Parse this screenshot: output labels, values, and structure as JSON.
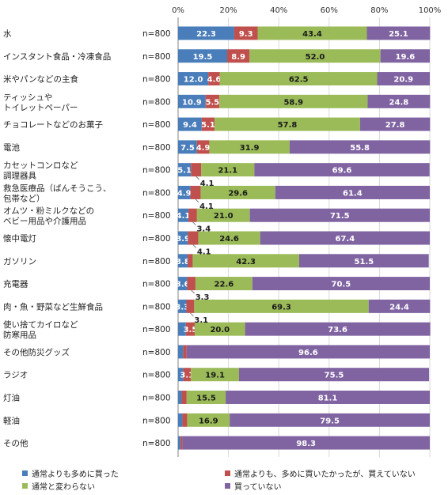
{
  "chart_data": {
    "type": "bar",
    "orientation": "horizontal",
    "stacked": true,
    "xlim": [
      0,
      100
    ],
    "x_ticks": [
      "0%",
      "20%",
      "40%",
      "60%",
      "80%",
      "100%"
    ],
    "grid": true,
    "legend_position": "bottom",
    "categories": [
      [
        "水"
      ],
      [
        "インスタント食品・冷凍食品"
      ],
      [
        "米やパンなどの主食"
      ],
      [
        "ティッシュや",
        "トイレットペーパー"
      ],
      [
        "チョコレートなどのお菓子"
      ],
      [
        "電池"
      ],
      [
        "カセットコンロなど",
        "調理器具"
      ],
      [
        "救急医療品（ばんそうこう、",
        "包帯など）"
      ],
      [
        "オムツ・粉ミルクなどの",
        "ベビー用品や介護用品"
      ],
      [
        "懐中電灯"
      ],
      [
        "ガソリン"
      ],
      [
        "充電器"
      ],
      [
        "肉・魚・野菜など生鮮食品"
      ],
      [
        "使い捨てカイロなど",
        "防寒用品"
      ],
      [
        "その他防災グッズ"
      ],
      [
        "ラジオ"
      ],
      [
        "灯油"
      ],
      [
        "軽油"
      ],
      [
        "その他"
      ]
    ],
    "n_labels": [
      "n=800",
      "n=800",
      "n=800",
      "n=800",
      "n=800",
      "n=800",
      "n=800",
      "n=800",
      "n=800",
      "n=800",
      "n=800",
      "n=800",
      "n=800",
      "n=800",
      "n=800",
      "n=800",
      "n=800",
      "n=800",
      "n=800"
    ],
    "series": [
      {
        "name": "通常よりも多めに買った",
        "color": "#4a7ebb",
        "values": [
          22.3,
          19.5,
          12.0,
          10.9,
          9.4,
          7.5,
          5.1,
          4.9,
          4.1,
          3.9,
          3.8,
          3.6,
          3.3,
          3.1,
          2.0,
          2.0,
          1.4,
          1.7,
          1.0
        ],
        "labels": [
          "22.3",
          "19.5",
          "12.0",
          "10.9",
          "9.4",
          "7.5",
          "5.1",
          "4.9",
          "4.1",
          "3.9",
          "3.8",
          "3.6",
          "3.3",
          "",
          "",
          "",
          "",
          "",
          ""
        ]
      },
      {
        "name": "通常よりも、多めに買いたかったが、買えていない",
        "color": "#c0504d",
        "values": [
          9.3,
          8.9,
          4.6,
          5.5,
          5.1,
          4.9,
          4.1,
          4.1,
          3.4,
          4.1,
          2.0,
          3.3,
          3.1,
          3.5,
          1.4,
          3.1,
          2.0,
          1.9,
          0.7
        ],
        "labels": [
          "9.3",
          "8.9",
          "4.6",
          "5.5",
          "5.1",
          "4.9",
          "",
          "",
          "",
          "",
          "",
          "",
          "",
          "3.5",
          "",
          "3.1",
          "",
          "",
          ""
        ]
      },
      {
        "name": "通常と変わらない",
        "color": "#9bbb59",
        "values": [
          43.4,
          52.0,
          62.5,
          58.9,
          57.8,
          31.9,
          21.1,
          29.6,
          21.0,
          24.6,
          42.3,
          22.6,
          69.3,
          20.0,
          0.0,
          19.1,
          15.5,
          16.9,
          0.0
        ],
        "labels": [
          "43.4",
          "52.0",
          "62.5",
          "58.9",
          "57.8",
          "31.9",
          "21.1",
          "29.6",
          "21.0",
          "24.6",
          "42.3",
          "22.6",
          "69.3",
          "20.0",
          "",
          "19.1",
          "15.5",
          "16.9",
          ""
        ]
      },
      {
        "name": "買っていない",
        "color": "#8064a2",
        "values": [
          25.1,
          19.6,
          20.9,
          24.8,
          27.8,
          55.8,
          69.6,
          61.4,
          71.5,
          67.4,
          51.5,
          70.5,
          24.4,
          73.6,
          96.6,
          75.5,
          81.1,
          79.5,
          98.3
        ],
        "labels": [
          "25.1",
          "19.6",
          "20.9",
          "24.8",
          "27.8",
          "55.8",
          "69.6",
          "61.4",
          "71.5",
          "67.4",
          "51.5",
          "70.5",
          "24.4",
          "73.6",
          "96.6",
          "75.5",
          "81.1",
          "79.5",
          "98.3"
        ]
      }
    ],
    "callouts": [
      {
        "row": 6,
        "text": "4.1"
      },
      {
        "row": 7,
        "text": "4.1"
      },
      {
        "row": 8,
        "text": "3.4"
      },
      {
        "row": 9,
        "text": "4.1"
      },
      {
        "row": 11,
        "text": "3.3"
      },
      {
        "row": 12,
        "text": "3.1"
      }
    ]
  }
}
